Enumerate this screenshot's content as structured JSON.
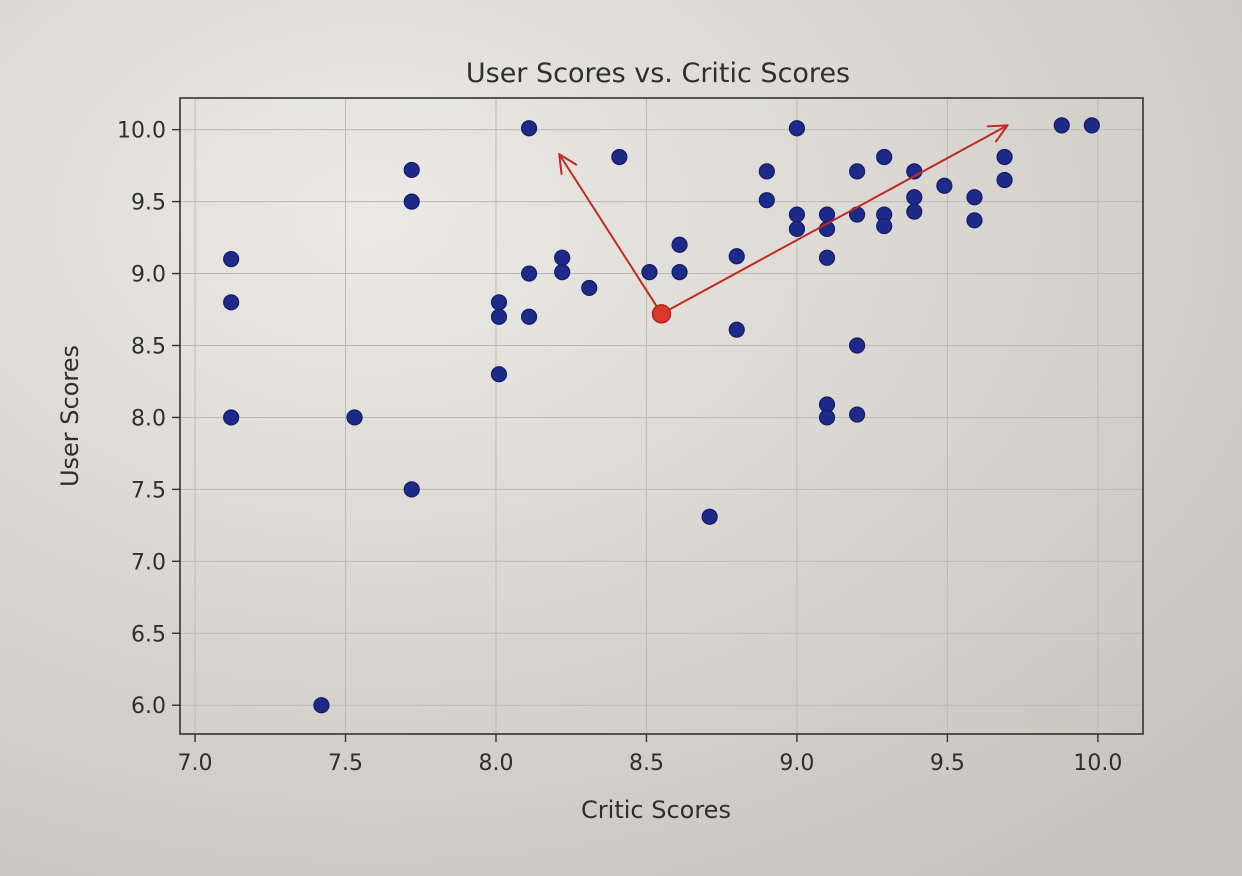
{
  "chart_data": {
    "type": "scatter",
    "title": "User Scores vs. Critic Scores",
    "xlabel": "Critic Scores",
    "ylabel": "User Scores",
    "xlim": [
      6.95,
      10.15
    ],
    "ylim": [
      5.8,
      10.22
    ],
    "xticks": [
      "7.0",
      "7.5",
      "8.0",
      "8.5",
      "9.0",
      "9.5",
      "10.0"
    ],
    "yticks": [
      "6.0",
      "6.5",
      "7.0",
      "7.5",
      "8.0",
      "8.5",
      "9.0",
      "9.5",
      "10.0"
    ],
    "grid": true,
    "series": [
      {
        "color": "#1e2a8a",
        "x": [
          7.12,
          7.12,
          7.12,
          7.42,
          7.53,
          7.72,
          7.72,
          7.72,
          8.01,
          8.01,
          8.01,
          8.11,
          8.11,
          8.11,
          8.22,
          8.22,
          8.31,
          8.41,
          8.51,
          8.61,
          8.61,
          8.71,
          8.8,
          8.8,
          8.9,
          8.9,
          9.0,
          9.0,
          9.0,
          9.1,
          9.1,
          9.1,
          9.1,
          9.1,
          9.2,
          9.2,
          9.2,
          9.2,
          9.29,
          9.29,
          9.29,
          9.39,
          9.39,
          9.39,
          9.49,
          9.59,
          9.59,
          9.69,
          9.69,
          9.88,
          9.98
        ],
        "y": [
          9.1,
          8.8,
          8.0,
          6.0,
          8.0,
          9.72,
          9.5,
          7.5,
          8.8,
          8.7,
          8.3,
          10.01,
          9.0,
          8.7,
          9.11,
          9.01,
          8.9,
          9.81,
          9.01,
          9.2,
          9.01,
          7.31,
          9.12,
          8.61,
          9.71,
          9.51,
          10.01,
          9.41,
          9.31,
          9.41,
          9.31,
          9.11,
          8.09,
          8.0,
          9.71,
          9.41,
          8.5,
          8.02,
          9.81,
          9.41,
          9.33,
          9.71,
          9.53,
          9.43,
          9.61,
          9.53,
          9.37,
          9.81,
          9.65,
          10.03,
          10.03
        ]
      }
    ],
    "annotations": [
      {
        "type": "point",
        "x": 8.55,
        "y": 8.72,
        "color": "#d9382c"
      },
      {
        "type": "arrow",
        "from": [
          8.55,
          8.72
        ],
        "to": [
          8.21,
          9.83
        ],
        "color": "#c22a22"
      },
      {
        "type": "arrow",
        "from": [
          8.55,
          8.72
        ],
        "to": [
          9.7,
          10.03
        ],
        "color": "#c22a22"
      }
    ]
  }
}
